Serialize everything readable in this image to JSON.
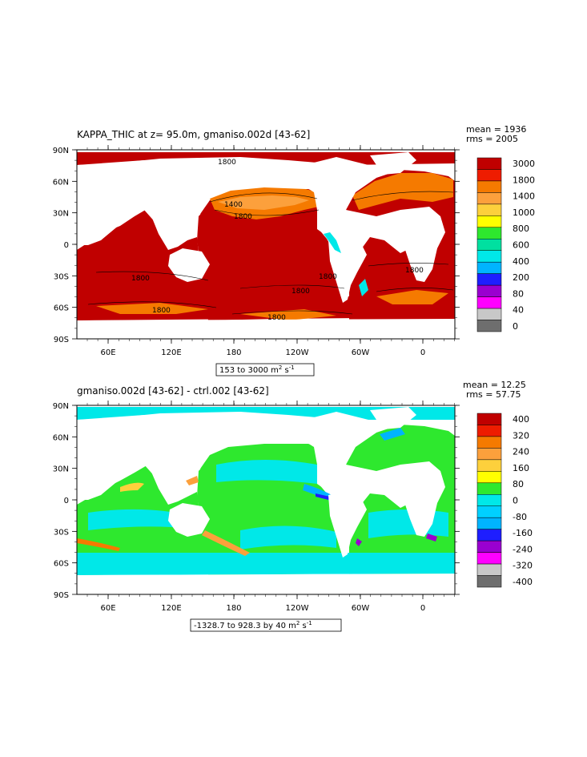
{
  "chart_data": [
    {
      "type": "heatmap",
      "title": "KAPPA_THIC at z=  95.0m, gmaniso.002d [43-62]",
      "stats": {
        "mean": "mean = 1936",
        "rms": "rms = 2005"
      },
      "range_label": "153 to 3000 m",
      "range_sup": "2",
      "range_tail": " s",
      "range_sup2": "-1",
      "x_ticks": [
        "60E",
        "120E",
        "180",
        "120W",
        "60W",
        "0"
      ],
      "y_ticks": [
        "90N",
        "60N",
        "30N",
        "0",
        "30S",
        "60S",
        "90S"
      ],
      "colorbar_labels": [
        "3000",
        "1800",
        "1400",
        "1000",
        "800",
        "600",
        "400",
        "200",
        "80",
        "40",
        "0"
      ],
      "colors": [
        "#c00000",
        "#ee1c00",
        "#f57a00",
        "#fca03c",
        "#fdd03c",
        "#ffff00",
        "#2ee82e",
        "#00e0a0",
        "#00e8e8",
        "#00b4ff",
        "#1e1eff",
        "#9a00d0",
        "#ff00ff",
        "#c8c8c8",
        "#6e6e6e"
      ],
      "contour_labels": [
        "1800",
        "1400",
        "1800",
        "1800",
        "1800",
        "1800",
        "1800",
        "1800",
        "1800"
      ]
    },
    {
      "type": "heatmap",
      "title": "gmaniso.002d [43-62] - ctrl.002 [43-62]",
      "stats": {
        "mean": "mean = 12.25",
        "rms": "rms = 57.75"
      },
      "range_label": "-1328.7 to 928.3 by 40 m",
      "range_sup": "2",
      "range_tail": " s",
      "range_sup2": "-1",
      "x_ticks": [
        "60E",
        "120E",
        "180",
        "120W",
        "60W",
        "0"
      ],
      "y_ticks": [
        "90N",
        "60N",
        "30N",
        "0",
        "30S",
        "60S",
        "90S"
      ],
      "colorbar_labels": [
        "400",
        "320",
        "240",
        "160",
        "80",
        "0",
        "-80",
        "-160",
        "-240",
        "-320",
        "-400"
      ],
      "colors": [
        "#c00000",
        "#ee1c00",
        "#f57a00",
        "#fca03c",
        "#fdd03c",
        "#ffff00",
        "#2ee82e",
        "#00e8e8",
        "#00d0ff",
        "#00b4ff",
        "#1e1eff",
        "#9a00d0",
        "#ff00ff",
        "#c8c8c8",
        "#6e6e6e"
      ]
    }
  ]
}
